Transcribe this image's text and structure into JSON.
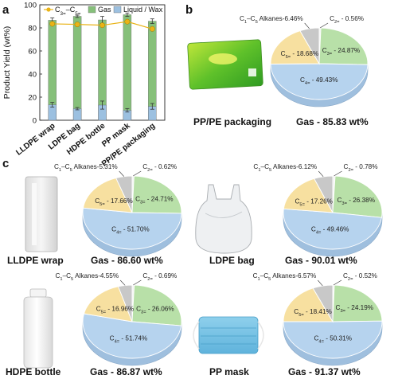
{
  "panel_labels": [
    "a",
    "b",
    "c"
  ],
  "colors": {
    "gas": "#86c07a",
    "liquid": "#9cc0e0",
    "c3c5_line": "#e9b317",
    "c3": "#b8e0a8",
    "c4": "#b6d3ee",
    "c5": "#f7e0a0",
    "alkanes": "#c8c8c8",
    "c2": "#f2f2f2"
  },
  "chart_data": [
    {
      "type": "bar",
      "panel": "a",
      "ylabel": "Product Yield (wt%)",
      "ylim": [
        0,
        100
      ],
      "yticks": [
        0,
        20,
        40,
        60,
        80,
        100
      ],
      "categories": [
        "LLDPE wrap",
        "LDPE bag",
        "HDPE bottle",
        "PP mask",
        "PP/PE packaging"
      ],
      "legend_position": "top",
      "series": [
        {
          "name": "Gas",
          "kind": "bar",
          "values": [
            86.6,
            90.0,
            86.9,
            91.4,
            85.8
          ],
          "errors": [
            2.0,
            1.0,
            3.0,
            1.5,
            2.0
          ]
        },
        {
          "name": "Liquid / Wax",
          "kind": "bar",
          "values": [
            13.4,
            10.0,
            13.1,
            8.6,
            12.0
          ],
          "errors": [
            2.0,
            1.0,
            3.5,
            1.5,
            2.5
          ]
        },
        {
          "name": "C3=-C5=",
          "kind": "line",
          "values": [
            83.5,
            83.0,
            82.3,
            85.4,
            79.1
          ],
          "errors": [
            1.5,
            1.5,
            1.5,
            1.5,
            1.5
          ]
        }
      ]
    },
    {
      "type": "pie",
      "panel": "b",
      "title": "PP/PE packaging",
      "subtitle": "Gas - 85.83 wt%",
      "slices": [
        {
          "label": "C4=",
          "value": 49.43,
          "text": "C4= - 49.43%"
        },
        {
          "label": "C3=",
          "value": 24.87,
          "text": "C3= - 24.87%"
        },
        {
          "label": "C5=",
          "value": 18.68,
          "text": "C5= - 18.68%"
        },
        {
          "label": "C1-C5 Alkanes",
          "value": 6.46,
          "text": "C1–C5 Alkanes-6.46%"
        },
        {
          "label": "C2=",
          "value": 0.56,
          "text": "C2= - 0.56%"
        }
      ]
    },
    {
      "type": "pie",
      "panel": "c",
      "title": "LLDPE wrap",
      "subtitle": "Gas - 86.60 wt%",
      "slices": [
        {
          "label": "C4=",
          "value": 51.7,
          "text": "C4= - 51.70%"
        },
        {
          "label": "C3=",
          "value": 24.71,
          "text": "C3= - 24.71%"
        },
        {
          "label": "C5=",
          "value": 17.66,
          "text": "C5= - 17.66%"
        },
        {
          "label": "C1-C5 Alkanes",
          "value": 5.31,
          "text": "C1–C5 Alkanes-5.31%"
        },
        {
          "label": "C2=",
          "value": 0.62,
          "text": "C2= - 0.62%"
        }
      ]
    },
    {
      "type": "pie",
      "panel": "c",
      "title": "LDPE bag",
      "subtitle": "Gas - 90.01 wt%",
      "slices": [
        {
          "label": "C4=",
          "value": 49.46,
          "text": "C4= - 49.46%"
        },
        {
          "label": "C3=",
          "value": 26.38,
          "text": "C3= - 26.38%"
        },
        {
          "label": "C5=",
          "value": 17.26,
          "text": "C5= - 17.26%"
        },
        {
          "label": "C1-C5 Alkanes",
          "value": 6.12,
          "text": "C1–C5 Alkanes-6.12%"
        },
        {
          "label": "C2=",
          "value": 0.78,
          "text": "C2= - 0.78%"
        }
      ]
    },
    {
      "type": "pie",
      "panel": "c",
      "title": "HDPE bottle",
      "subtitle": "Gas - 86.87 wt%",
      "slices": [
        {
          "label": "C4=",
          "value": 51.74,
          "text": "C4= - 51.74%"
        },
        {
          "label": "C3=",
          "value": 26.06,
          "text": "C3= - 26.06%"
        },
        {
          "label": "C5=",
          "value": 16.96,
          "text": "C5= - 16.96%"
        },
        {
          "label": "C1-C5 Alkanes",
          "value": 4.55,
          "text": "C1–C5 Alkanes-4.55%"
        },
        {
          "label": "C2=",
          "value": 0.69,
          "text": "C2= - 0.69%"
        }
      ]
    },
    {
      "type": "pie",
      "panel": "c",
      "title": "PP mask",
      "subtitle": "Gas - 91.37 wt%",
      "slices": [
        {
          "label": "C4=",
          "value": 50.31,
          "text": "C4= - 50.31%"
        },
        {
          "label": "C3=",
          "value": 24.19,
          "text": "C3= - 24.19%"
        },
        {
          "label": "C5=",
          "value": 18.41,
          "text": "C5= - 18.41%"
        },
        {
          "label": "C1-C5 Alkanes",
          "value": 6.57,
          "text": "C1–C5 Alkanes-6.57%"
        },
        {
          "label": "C2=",
          "value": 0.52,
          "text": "C2= - 0.52%"
        }
      ]
    }
  ]
}
